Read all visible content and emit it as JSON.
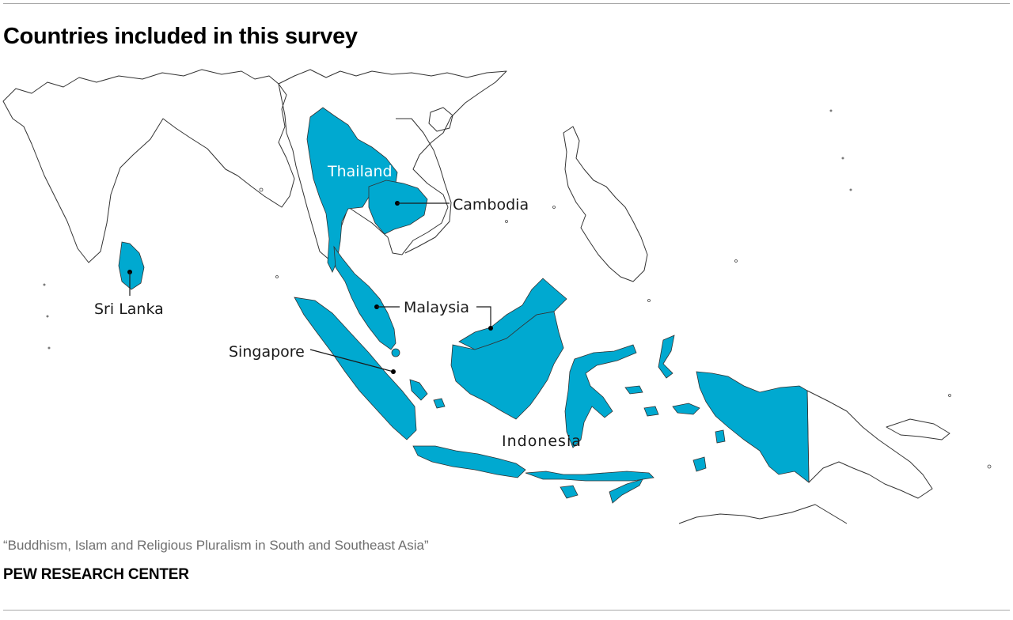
{
  "title": "Countries included in this survey",
  "source": "“Buddhism, Islam and Religious Pluralism in South and Southeast Asia”",
  "organization": "PEW RESEARCH CENTER",
  "colors": {
    "highlight": "#00a9d0",
    "outline": "#333333",
    "background": "#ffffff"
  },
  "map": {
    "countries": [
      {
        "name": "Thailand",
        "label": "Thailand"
      },
      {
        "name": "Cambodia",
        "label": "Cambodia"
      },
      {
        "name": "Sri Lanka",
        "label": "Sri Lanka"
      },
      {
        "name": "Malaysia",
        "label": "Malaysia"
      },
      {
        "name": "Singapore",
        "label": "Singapore"
      },
      {
        "name": "Indonesia",
        "label": "Indonesia"
      }
    ]
  }
}
